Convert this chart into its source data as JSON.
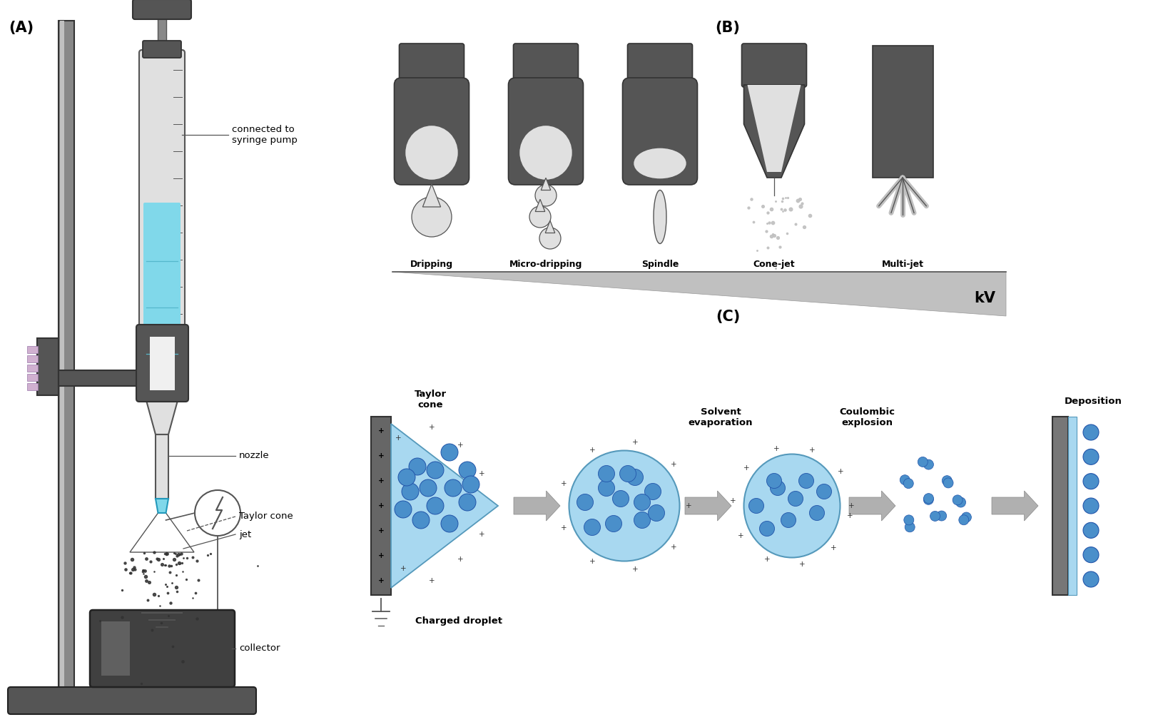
{
  "bg_color": "#ffffff",
  "label_A": "(A)",
  "label_B": "(B)",
  "label_C": "(C)",
  "gray_dark": "#555555",
  "gray_mid": "#888888",
  "gray_light": "#c0c0c0",
  "gray_very_light": "#e0e0e0",
  "blue_liquid": "#80d8ea",
  "blue_circle": "#4a8fca",
  "blue_cone": "#a8d8f0",
  "nozzle_label": "nozzle",
  "taylor_label": "Taylor cone",
  "jet_label": "jet",
  "collector_label": "collector",
  "syringe_label": "connected to\nsyringe pump",
  "b_labels": [
    "Dripping",
    "Micro-dripping",
    "Spindle",
    "Cone-jet",
    "Multi-jet"
  ],
  "kv_label": "kV",
  "c_title_taylor": "Taylor\ncone",
  "c_title_charged": "Charged droplet",
  "c_title_solvent": "Solvent\nevaporation",
  "c_title_coulombic": "Coulombic\nexplosion",
  "c_title_deposition": "Deposition"
}
